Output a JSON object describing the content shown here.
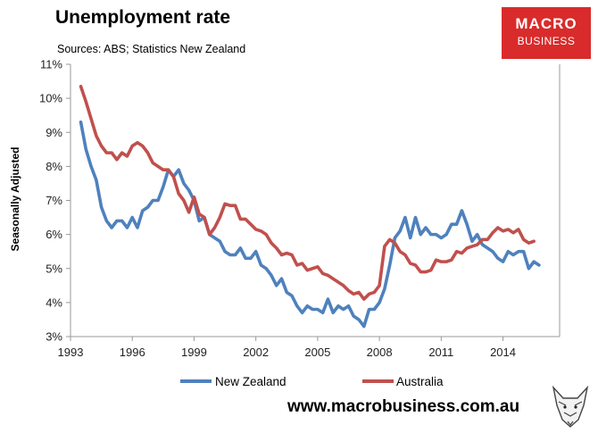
{
  "header": {
    "title": "Unemployment rate",
    "subtitle": "Sources: ABS; Statistics New Zealand"
  },
  "logo": {
    "line1": "MACRO",
    "line2": "BUSINESS",
    "color": "#d92b2b"
  },
  "footer": {
    "url": "www.macrobusiness.com.au"
  },
  "colors": {
    "nz": "#4f81bd",
    "au": "#c0504d",
    "axis": "#999999"
  },
  "chart_data": {
    "type": "line",
    "title": "Unemployment rate",
    "xlabel": "",
    "ylabel": "Seasonally Adjusted",
    "xlim": [
      1993.0,
      2016.75
    ],
    "ylim": [
      3,
      11
    ],
    "yticks": [
      3,
      4,
      5,
      6,
      7,
      8,
      9,
      10,
      11
    ],
    "ytick_labels": [
      "3%",
      "4%",
      "5%",
      "6%",
      "7%",
      "8%",
      "9%",
      "10%",
      "11%"
    ],
    "xticks": [
      1993,
      1996,
      1999,
      2002,
      2005,
      2008,
      2011,
      2014
    ],
    "xtick_labels": [
      "1993",
      "1996",
      "1999",
      "2002",
      "2005",
      "2008",
      "2011",
      "2014"
    ],
    "legend_position": "bottom",
    "series": [
      {
        "name": "New Zealand",
        "x_start": 1993.5,
        "x_step": 0.25,
        "values": [
          9.3,
          8.5,
          8.0,
          7.6,
          6.8,
          6.4,
          6.2,
          6.4,
          6.4,
          6.2,
          6.5,
          6.2,
          6.7,
          6.8,
          7.0,
          7.0,
          7.4,
          7.9,
          7.7,
          7.9,
          7.5,
          7.3,
          7.0,
          6.4,
          6.5,
          6.0,
          5.9,
          5.8,
          5.5,
          5.4,
          5.4,
          5.6,
          5.3,
          5.3,
          5.5,
          5.1,
          5.0,
          4.8,
          4.5,
          4.7,
          4.3,
          4.2,
          3.9,
          3.7,
          3.9,
          3.8,
          3.8,
          3.7,
          4.1,
          3.7,
          3.9,
          3.8,
          3.9,
          3.6,
          3.5,
          3.3,
          3.8,
          3.8,
          4.0,
          4.4,
          5.1,
          5.9,
          6.1,
          6.5,
          5.9,
          6.5,
          6.0,
          6.2,
          6.0,
          6.0,
          5.9,
          6.0,
          6.3,
          6.3,
          6.7,
          6.3,
          5.8,
          6.0,
          5.7,
          5.6,
          5.5,
          5.3,
          5.2,
          5.5,
          5.4,
          5.5,
          5.5,
          5.0,
          5.2,
          5.1
        ]
      },
      {
        "name": "Australia",
        "x_start": 1993.5,
        "x_step": 0.25,
        "values": [
          10.35,
          9.9,
          9.4,
          8.9,
          8.6,
          8.4,
          8.4,
          8.2,
          8.4,
          8.3,
          8.6,
          8.7,
          8.6,
          8.4,
          8.1,
          8.0,
          7.9,
          7.9,
          7.7,
          7.2,
          7.0,
          6.65,
          7.1,
          6.6,
          6.5,
          6.0,
          6.2,
          6.5,
          6.9,
          6.85,
          6.85,
          6.45,
          6.45,
          6.3,
          6.15,
          6.1,
          6.0,
          5.75,
          5.6,
          5.4,
          5.45,
          5.4,
          5.1,
          5.15,
          4.95,
          5.0,
          5.05,
          4.85,
          4.8,
          4.7,
          4.6,
          4.5,
          4.35,
          4.25,
          4.3,
          4.1,
          4.25,
          4.3,
          4.5,
          5.65,
          5.85,
          5.75,
          5.5,
          5.4,
          5.15,
          5.1,
          4.9,
          4.9,
          4.95,
          5.25,
          5.2,
          5.2,
          5.25,
          5.5,
          5.45,
          5.6,
          5.65,
          5.7,
          5.85,
          5.85,
          6.05,
          6.2,
          6.1,
          6.15,
          6.05,
          6.15,
          5.85,
          5.75,
          5.8
        ]
      }
    ]
  }
}
